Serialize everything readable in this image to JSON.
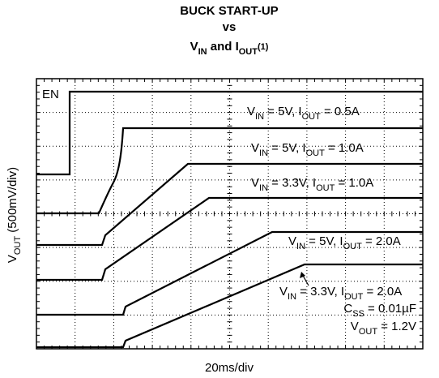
{
  "title": [
    "BUCK START-UP",
    "vs",
    [
      "V",
      "IN",
      " and I",
      "OUT",
      "(1)"
    ]
  ],
  "y_axis_label": [
    "V",
    "OUT",
    " (500mV/div)"
  ],
  "x_axis_label": "20ms/div",
  "enable_label": "EN",
  "trace_labels": [
    [
      "V",
      "IN",
      " = 5V, I",
      "OUT",
      " = 0.5A"
    ],
    [
      "V",
      "IN",
      " = 5V, I",
      "OUT",
      " = 1.0A"
    ],
    [
      "V",
      "IN",
      " = 3.3V, I",
      "OUT",
      " = 1.0A"
    ],
    [
      "V",
      "IN",
      " = 5V, I",
      "OUT",
      " = 2.0A"
    ],
    [
      "V",
      "IN",
      " = 3.3V, I",
      "OUT",
      " = 2.0A"
    ]
  ],
  "conditions": [
    [
      "C",
      "SS",
      " = 0.01µF"
    ],
    [
      "V",
      "OUT",
      " = 1.2V"
    ]
  ]
}
